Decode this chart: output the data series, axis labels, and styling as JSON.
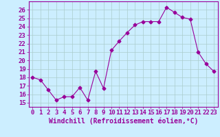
{
  "x": [
    0,
    1,
    2,
    3,
    4,
    5,
    6,
    7,
    8,
    9,
    10,
    11,
    12,
    13,
    14,
    15,
    16,
    17,
    18,
    19,
    20,
    21,
    22,
    23
  ],
  "y": [
    18.0,
    17.7,
    16.5,
    15.3,
    15.7,
    15.7,
    16.8,
    15.3,
    18.7,
    16.7,
    21.2,
    22.3,
    23.3,
    24.2,
    24.6,
    24.6,
    24.6,
    26.3,
    25.7,
    25.1,
    24.9,
    21.0,
    19.6,
    18.7
  ],
  "line_color": "#990099",
  "marker": "D",
  "marker_size": 2.5,
  "bg_color": "#cceeff",
  "grid_color": "#aacccc",
  "xlabel": "Windchill (Refroidissement éolien,°C)",
  "xlabel_fontsize": 7,
  "tick_fontsize": 6.5,
  "ylim": [
    14.5,
    27.0
  ],
  "xlim": [
    -0.5,
    23.5
  ],
  "yticks": [
    15,
    16,
    17,
    18,
    19,
    20,
    21,
    22,
    23,
    24,
    25,
    26
  ],
  "xticks": [
    0,
    1,
    2,
    3,
    4,
    5,
    6,
    7,
    8,
    9,
    10,
    11,
    12,
    13,
    14,
    15,
    16,
    17,
    18,
    19,
    20,
    21,
    22,
    23
  ],
  "xtick_labels": [
    "0",
    "1",
    "2",
    "3",
    "4",
    "5",
    "6",
    "7",
    "8",
    "9",
    "10",
    "11",
    "12",
    "13",
    "14",
    "15",
    "16",
    "17",
    "18",
    "19",
    "20",
    "21",
    "22",
    "23"
  ]
}
